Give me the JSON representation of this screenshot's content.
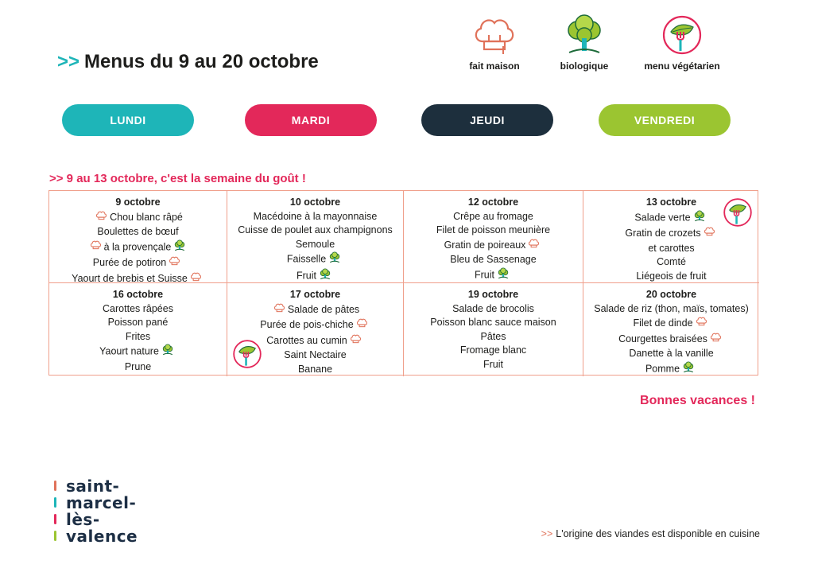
{
  "header": {
    "arrow": ">>",
    "title": "Menus du 9 au 20 octobre"
  },
  "legend": [
    {
      "label": "fait maison",
      "icon": "chef-hat-icon"
    },
    {
      "label": "biologique",
      "icon": "organic-tree-icon"
    },
    {
      "label": "menu végétarien",
      "icon": "vegetarian-leaf-icon"
    }
  ],
  "days": [
    {
      "label": "LUNDI",
      "color": "#1eb5b8"
    },
    {
      "label": "MARDI",
      "color": "#e3285a"
    },
    {
      "label": "JEUDI",
      "color": "#1d2f3d"
    },
    {
      "label": "VENDREDI",
      "color": "#9bc531"
    }
  ],
  "week_title": ">> 9 au 13 octobre, c'est la semaine du goût !",
  "weeks": [
    [
      {
        "date": "9 octobre",
        "items": [
          {
            "text": "Chou blanc râpé",
            "icons": [
              "chef-hat-icon"
            ]
          },
          {
            "text": "Boulettes de bœuf",
            "icons": []
          },
          {
            "text": "à la provençale",
            "icons": [
              "chef-hat-icon",
              "organic-tree-icon"
            ]
          },
          {
            "text": "Purée de potiron",
            "icons": [
              "chef-hat-icon"
            ]
          },
          {
            "text": "Yaourt de brebis et Suisse",
            "icons": [
              "chef-hat-icon"
            ]
          }
        ]
      },
      {
        "date": "10 octobre",
        "items": [
          {
            "text": "Macédoine à la mayonnaise",
            "icons": []
          },
          {
            "text": "Cuisse de poulet aux champignons",
            "icons": []
          },
          {
            "text": "Semoule",
            "icons": []
          },
          {
            "text": "Faisselle",
            "icons": [
              "organic-tree-icon"
            ]
          },
          {
            "text": "Fruit",
            "icons": [
              "organic-tree-icon"
            ]
          }
        ]
      },
      {
        "date": "12 octobre",
        "items": [
          {
            "text": "Crêpe au fromage",
            "icons": []
          },
          {
            "text": "Filet de poisson meunière",
            "icons": []
          },
          {
            "text": "Gratin de poireaux",
            "icons": [
              "chef-hat-icon"
            ]
          },
          {
            "text": "Bleu de Sassenage",
            "icons": []
          },
          {
            "text": "Fruit",
            "icons": [
              "organic-tree-icon"
            ]
          }
        ]
      },
      {
        "date": "13 octobre",
        "vegetarian": true,
        "items": [
          {
            "text": "Salade verte",
            "icons": [
              "organic-tree-icon"
            ]
          },
          {
            "text": "Gratin de crozets",
            "icons": [
              "chef-hat-icon"
            ]
          },
          {
            "text": "et carottes",
            "icons": []
          },
          {
            "text": "Comté",
            "icons": []
          },
          {
            "text": "Liégeois de fruit",
            "icons": []
          }
        ]
      }
    ],
    [
      {
        "date": "16 octobre",
        "items": [
          {
            "text": "Carottes râpées",
            "icons": []
          },
          {
            "text": "Poisson pané",
            "icons": []
          },
          {
            "text": "Frites",
            "icons": []
          },
          {
            "text": "Yaourt nature",
            "icons": [
              "organic-tree-icon"
            ]
          },
          {
            "text": "Prune",
            "icons": []
          }
        ]
      },
      {
        "date": "17 octobre",
        "vegetarian": true,
        "items": [
          {
            "text": "Salade de pâtes",
            "icons": [
              "chef-hat-icon"
            ]
          },
          {
            "text": "Purée de pois-chiche",
            "icons": [
              "chef-hat-icon"
            ]
          },
          {
            "text": "Carottes au cumin",
            "icons": [
              "chef-hat-icon"
            ]
          },
          {
            "text": "Saint Nectaire",
            "icons": []
          },
          {
            "text": "Banane",
            "icons": []
          }
        ]
      },
      {
        "date": "19 octobre",
        "items": [
          {
            "text": "Salade de brocolis",
            "icons": []
          },
          {
            "text": "Poisson blanc sauce maison",
            "icons": []
          },
          {
            "text": "Pâtes",
            "icons": []
          },
          {
            "text": "Fromage blanc",
            "icons": []
          },
          {
            "text": "Fruit",
            "icons": []
          }
        ]
      },
      {
        "date": "20 octobre",
        "items": [
          {
            "text": "Salade de riz (thon, maïs, tomates)",
            "icons": []
          },
          {
            "text": "Filet de dinde",
            "icons": [
              "chef-hat-icon"
            ]
          },
          {
            "text": "Courgettes braisées",
            "icons": [
              "chef-hat-icon"
            ]
          },
          {
            "text": "Danette à la vanille",
            "icons": []
          },
          {
            "text": "Pomme",
            "icons": [
              "organic-tree-icon"
            ]
          }
        ]
      }
    ]
  ],
  "vacances": "Bonnes vacances !",
  "logo": [
    {
      "text": "saint-",
      "bar_color": "#e0725a"
    },
    {
      "text": "marcel-",
      "bar_color": "#1eb5b8"
    },
    {
      "text": "lès-",
      "bar_color": "#e3285a"
    },
    {
      "text": "valence",
      "bar_color": "#9bc531"
    }
  ],
  "footer": {
    "arrow": ">>",
    "text": "L'origine des viandes est disponible en cuisine"
  }
}
